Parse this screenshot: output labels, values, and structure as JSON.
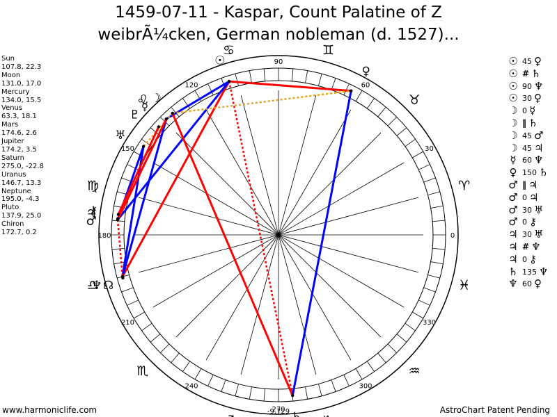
{
  "title": {
    "line1": "1459-07-11 - Kaspar, Count Palatine of Z",
    "line2": "weibrÃ¼cken, German nobleman (d. 1527)..."
  },
  "positions": [
    {
      "name": "Sun",
      "value": "107.8, 22.3"
    },
    {
      "name": "Moon",
      "value": "131.0, 17.0"
    },
    {
      "name": "Mercury",
      "value": "134.0, 15.5"
    },
    {
      "name": "Venus",
      "value": "63.3, 18.1"
    },
    {
      "name": "Mars",
      "value": "174.6, 2.6"
    },
    {
      "name": "Jupiter",
      "value": "174.2, 3.5"
    },
    {
      "name": "Saturn",
      "value": "275.0, -22.8"
    },
    {
      "name": "Uranus",
      "value": "146.7, 13.3"
    },
    {
      "name": "Neptune",
      "value": "195.0, -4.3"
    },
    {
      "name": "Pluto",
      "value": "137.9, 25.0"
    },
    {
      "name": "Chiron",
      "value": "172.7, 0.2"
    }
  ],
  "aspects": [
    {
      "p1": "☉",
      "symbol": "",
      "orb": "45",
      "p2": "♀"
    },
    {
      "p1": "☉",
      "symbol": "#",
      "orb": "",
      "p2": "♄"
    },
    {
      "p1": "☉",
      "symbol": "",
      "orb": "90",
      "p2": "♆"
    },
    {
      "p1": "☉",
      "symbol": "",
      "orb": "30",
      "p2": "♀"
    },
    {
      "p1": "☽",
      "symbol": "",
      "orb": "0",
      "p2": "☿"
    },
    {
      "p1": "☽",
      "symbol": "‖",
      "orb": "",
      "p2": "♄"
    },
    {
      "p1": "☽",
      "symbol": "",
      "orb": "45",
      "p2": "♂"
    },
    {
      "p1": "☽",
      "symbol": "",
      "orb": "45",
      "p2": "♃"
    },
    {
      "p1": "☿",
      "symbol": "",
      "orb": "60",
      "p2": "♆"
    },
    {
      "p1": "♀",
      "symbol": "",
      "orb": "150",
      "p2": "♄"
    },
    {
      "p1": "♂",
      "symbol": "‖",
      "orb": "",
      "p2": "♃"
    },
    {
      "p1": "♂",
      "symbol": "",
      "orb": "0",
      "p2": "♃"
    },
    {
      "p1": "♂",
      "symbol": "",
      "orb": "30",
      "p2": "♅"
    },
    {
      "p1": "♂",
      "symbol": "",
      "orb": "0",
      "p2": "⚷"
    },
    {
      "p1": "♃",
      "symbol": "",
      "orb": "30",
      "p2": "♅"
    },
    {
      "p1": "♃",
      "symbol": "#",
      "orb": "",
      "p2": "♆"
    },
    {
      "p1": "♃",
      "symbol": "",
      "orb": "0",
      "p2": "⚷"
    },
    {
      "p1": "♄",
      "symbol": "",
      "orb": "135",
      "p2": "♆"
    },
    {
      "p1": "♆",
      "symbol": "",
      "orb": "60",
      "p2": "♀"
    }
  ],
  "footer": {
    "left": "www.harmoniclife.com",
    "right": "AstroChart Patent Pending"
  },
  "wheel": {
    "degree_labels": [
      "0",
      "30",
      "60",
      "90",
      "120",
      "150",
      "180",
      "210",
      "240",
      "270",
      "300",
      "330"
    ],
    "bottom_value": "-9,729",
    "zodiac": [
      {
        "name": "aries-icon",
        "glyph": "♈",
        "longitude": 15
      },
      {
        "name": "taurus-icon",
        "glyph": "♉",
        "longitude": 45
      },
      {
        "name": "gemini-icon",
        "glyph": "♊",
        "longitude": 75
      },
      {
        "name": "cancer-icon",
        "glyph": "♋",
        "longitude": 105
      },
      {
        "name": "leo-icon",
        "glyph": "♌",
        "longitude": 135
      },
      {
        "name": "virgo-icon",
        "glyph": "♍",
        "longitude": 165
      },
      {
        "name": "libra-icon",
        "glyph": "♎",
        "longitude": 195
      },
      {
        "name": "scorpio-icon",
        "glyph": "♏",
        "longitude": 225
      },
      {
        "name": "sagittarius-icon",
        "glyph": "♐",
        "longitude": 255
      },
      {
        "name": "capricorn-icon",
        "glyph": "♑",
        "longitude": 285
      },
      {
        "name": "aquarius-icon",
        "glyph": "♒",
        "longitude": 315
      },
      {
        "name": "pisces-icon",
        "glyph": "♓",
        "longitude": 345
      }
    ],
    "planets": [
      {
        "name": "sun-icon",
        "glyph": "☉",
        "longitude": 107.8,
        "latitude": 22.3
      },
      {
        "name": "moon-icon",
        "glyph": "☽",
        "longitude": 131.0,
        "latitude": 17.0
      },
      {
        "name": "mercury-icon",
        "glyph": "☿",
        "longitude": 134.0,
        "latitude": 15.5
      },
      {
        "name": "venus-icon",
        "glyph": "♀",
        "longitude": 63.3,
        "latitude": 18.1
      },
      {
        "name": "mars-icon",
        "glyph": "♂",
        "longitude": 174.6,
        "latitude": 2.6
      },
      {
        "name": "jupiter-icon",
        "glyph": "♃",
        "longitude": 174.2,
        "latitude": 3.5
      },
      {
        "name": "saturn-icon",
        "glyph": "♄",
        "longitude": 275.0,
        "latitude": -22.8
      },
      {
        "name": "uranus-icon",
        "glyph": "♅",
        "longitude": 146.7,
        "latitude": 13.3
      },
      {
        "name": "neptune-icon",
        "glyph": "♆",
        "longitude": 195.0,
        "latitude": -4.3
      },
      {
        "name": "pluto-icon",
        "glyph": "♇",
        "longitude": 137.9,
        "latitude": 25.0
      },
      {
        "name": "chiron-icon",
        "glyph": "⚷",
        "longitude": 172.7,
        "latitude": 0.2
      },
      {
        "name": "north-node-icon",
        "glyph": "☊",
        "longitude": 195.5,
        "latitude": 0
      }
    ],
    "aspect_lines": [
      {
        "from": "sun-icon",
        "to": "venus-icon",
        "color": "#ff0000",
        "style": "solid"
      },
      {
        "from": "sun-icon",
        "to": "saturn-icon",
        "color": "#ff0000",
        "style": "dotted"
      },
      {
        "from": "sun-icon",
        "to": "neptune-icon",
        "color": "#ff0000",
        "style": "solid"
      },
      {
        "from": "sun-icon",
        "to": "mercury-icon",
        "color": "#0000ff",
        "style": "solid"
      },
      {
        "from": "sun-icon",
        "to": "mars-icon",
        "color": "#0000ff",
        "style": "solid"
      },
      {
        "from": "moon-icon",
        "to": "saturn-icon",
        "color": "#ff0000",
        "style": "solid"
      },
      {
        "from": "moon-icon",
        "to": "uranus-icon",
        "color": "#e8a317",
        "style": "dotted"
      },
      {
        "from": "moon-icon",
        "to": "venus-icon",
        "color": "#e8a317",
        "style": "dotted"
      },
      {
        "from": "venus-icon",
        "to": "saturn-icon",
        "color": "#0000ff",
        "style": "solid"
      },
      {
        "from": "mercury-icon",
        "to": "neptune-icon",
        "color": "#0000ff",
        "style": "solid"
      },
      {
        "from": "uranus-icon",
        "to": "mars-icon",
        "color": "#0000ff",
        "style": "solid"
      },
      {
        "from": "uranus-icon",
        "to": "neptune-icon",
        "color": "#0000ff",
        "style": "solid"
      },
      {
        "from": "mars-icon",
        "to": "neptune-icon",
        "color": "#ff0000",
        "style": "dotted"
      },
      {
        "from": "chiron-icon",
        "to": "pluto-icon",
        "color": "#ff0000",
        "style": "solid"
      },
      {
        "from": "mars-icon",
        "to": "mercury-icon",
        "color": "#ff0000",
        "style": "solid"
      }
    ]
  }
}
